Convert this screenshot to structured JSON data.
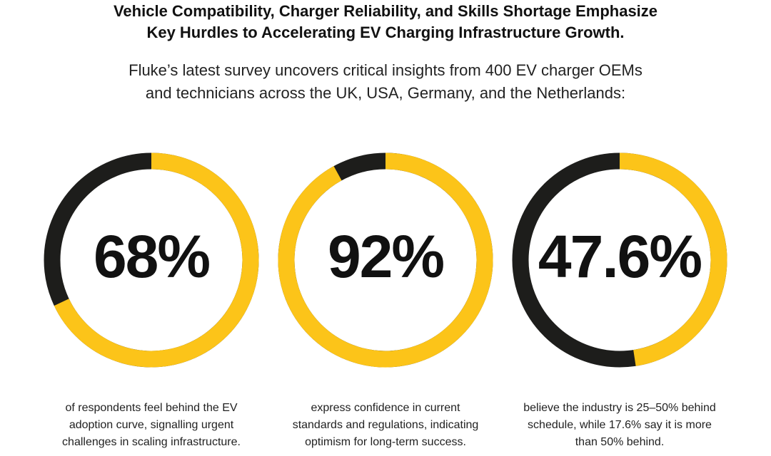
{
  "title": [
    "Vehicle Compatibility, Charger Reliability, and Skills Shortage Emphasize",
    "Key Hurdles to Accelerating EV Charging Infrastructure Growth."
  ],
  "subtitle": [
    "Fluke’s latest survey uncovers critical insights from 400 EV charger OEMs",
    "and technicians across the UK, USA, Germany, and the Netherlands:"
  ],
  "chart_data": [
    {
      "type": "donut",
      "values": [
        68
      ],
      "value_labels": [
        "68%"
      ],
      "color": "#fcc419",
      "track_color": "#1d1d1b",
      "caption": [
        "of respondents feel behind the EV",
        "adoption curve, signalling urgent",
        "challenges in scaling infrastructure."
      ]
    },
    {
      "type": "donut",
      "values": [
        92
      ],
      "value_labels": [
        "92%"
      ],
      "color": "#fcc419",
      "track_color": "#1d1d1b",
      "caption": [
        "express confidence in current",
        "standards and regulations, indicating",
        "optimism for long-term success."
      ]
    },
    {
      "type": "donut",
      "values": [
        47.6
      ],
      "value_labels": [
        "47.6%"
      ],
      "color": "#fcc419",
      "track_color": "#1d1d1b",
      "caption": [
        "believe the industry is 25–50% behind",
        "schedule, while 17.6% say it is more",
        "than 50% behind."
      ]
    }
  ]
}
